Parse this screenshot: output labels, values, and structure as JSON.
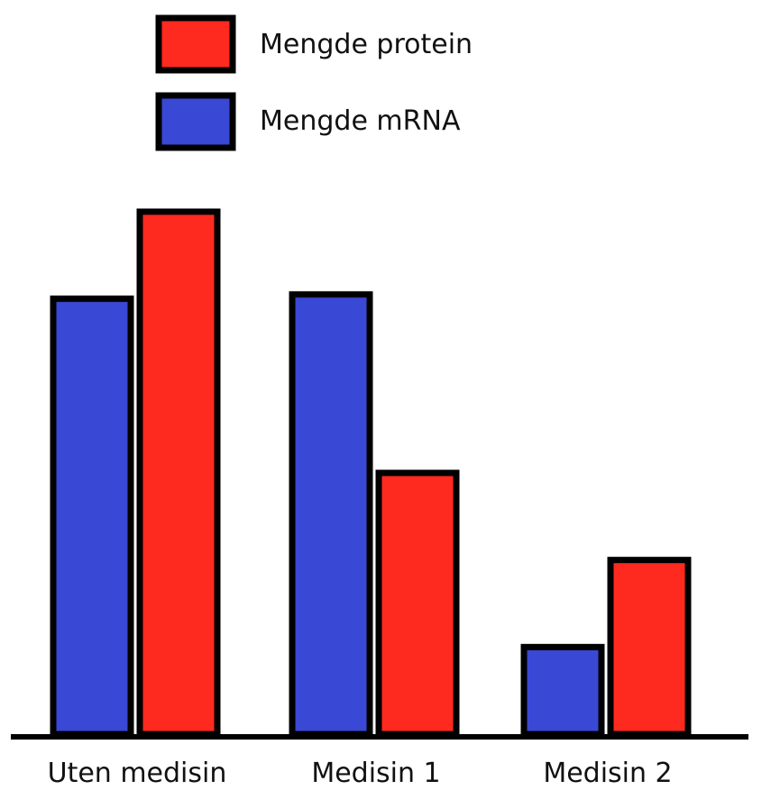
{
  "chart_data": {
    "type": "bar",
    "categories": [
      "Uten medisin",
      "Medisin 1",
      "Medisin 2"
    ],
    "series": [
      {
        "name": "Mengde mRNA",
        "color": "#3a48d6",
        "values": [
          100,
          101,
          20
        ]
      },
      {
        "name": "Mengde protein",
        "color": "#ff2a1f",
        "values": [
          120,
          60,
          40
        ]
      }
    ],
    "ylim": [
      0,
      120
    ],
    "grid": false,
    "legend": {
      "position": "top-left",
      "entries": [
        "Mengde protein",
        "Mengde mRNA"
      ]
    }
  }
}
